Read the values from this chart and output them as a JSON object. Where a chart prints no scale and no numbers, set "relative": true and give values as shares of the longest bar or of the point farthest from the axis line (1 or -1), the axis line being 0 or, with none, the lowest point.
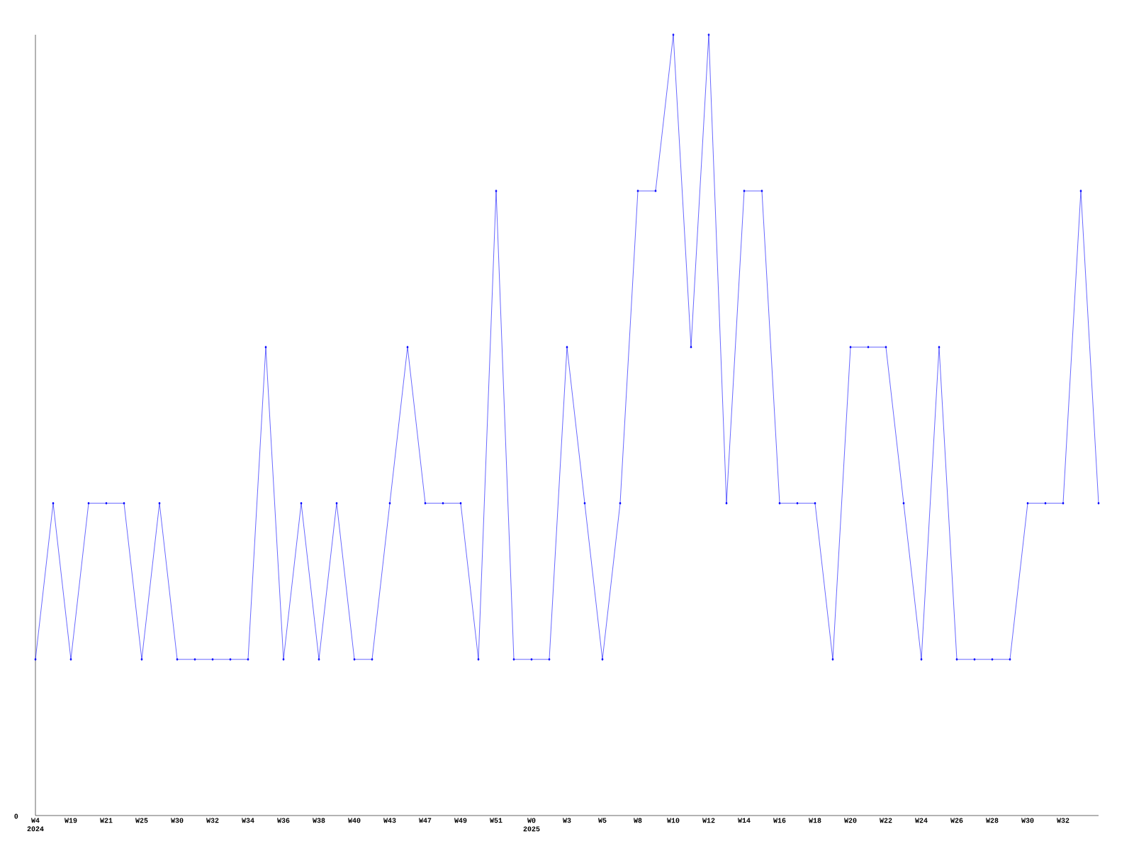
{
  "chart_data": {
    "type": "line",
    "relative": true,
    "color": "#0000ff",
    "marker": "diamond",
    "categories": [
      "W4 2024",
      null,
      "W19",
      null,
      "W21",
      null,
      "W25",
      null,
      "W30",
      null,
      "W32",
      null,
      "W34",
      null,
      "W36",
      null,
      "W38",
      null,
      "W40",
      null,
      "W43",
      null,
      "W47",
      null,
      "W49",
      null,
      "W51",
      null,
      "W0 2025",
      null,
      "W3",
      null,
      "W5",
      null,
      "W8",
      null,
      "W10",
      null,
      "W12",
      null,
      "W14",
      null,
      "W16",
      null,
      "W18",
      null,
      "W20",
      null,
      "W22",
      null,
      "W24",
      null,
      "W26",
      null,
      "W28",
      null,
      "W30",
      null,
      "W32",
      null,
      null
    ],
    "values": [
      0.2,
      0.4,
      0.2,
      0.4,
      0.4,
      0.4,
      0.2,
      0.4,
      0.2,
      0.2,
      0.2,
      0.2,
      0.2,
      0.6,
      0.2,
      0.4,
      0.2,
      0.4,
      0.2,
      0.2,
      0.4,
      0.6,
      0.4,
      0.4,
      0.4,
      0.2,
      0.8,
      0.2,
      0.2,
      0.2,
      0.6,
      0.4,
      0.2,
      0.4,
      0.8,
      0.8,
      1,
      0.6,
      1,
      0.4,
      0.8,
      0.8,
      0.4,
      0.4,
      0.4,
      0.2,
      0.6,
      0.6,
      0.6,
      0.4,
      0.2,
      0.6,
      0.2,
      0.2,
      0.2,
      0.2,
      0.4,
      0.4,
      0.4,
      0.8,
      0.4
    ],
    "annotations": [
      "0"
    ]
  }
}
